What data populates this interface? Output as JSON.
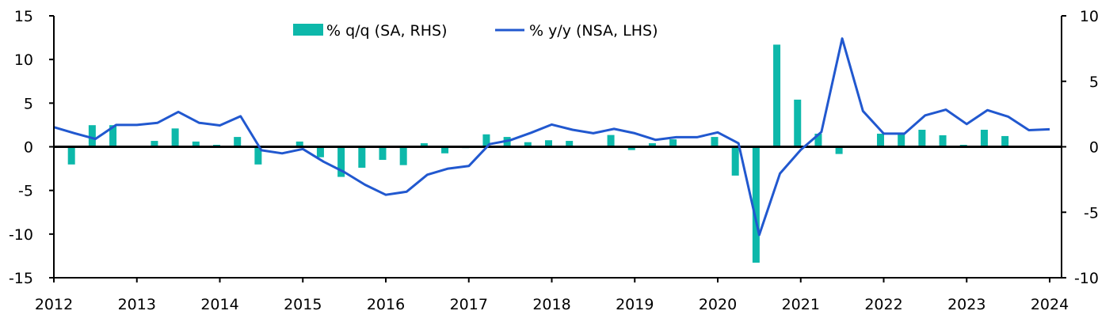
{
  "chart_data": {
    "type": "bar+line",
    "title": "",
    "x_ticks": [
      "2012",
      "2013",
      "2014",
      "2015",
      "2016",
      "2017",
      "2018",
      "2019",
      "2020",
      "2021",
      "2022",
      "2023",
      "2024"
    ],
    "x_range": [
      2012,
      2024
    ],
    "left_axis": {
      "label": "",
      "ylim": [
        -15,
        15
      ],
      "ticks": [
        "15",
        "10",
        "5",
        "0",
        "-5",
        "-10",
        "-15"
      ]
    },
    "right_axis": {
      "label": "",
      "ylim": [
        -10,
        10
      ],
      "ticks": [
        "10",
        "5",
        "0",
        "-5",
        "-10"
      ]
    },
    "legend": {
      "placement": "top-center"
    },
    "series": [
      {
        "name": "% q/q (SA, RHS)",
        "type": "bar",
        "axis": "right",
        "color": "#0DB8AA",
        "x_start": 2012.0,
        "x_step": 0.25,
        "values": [
          null,
          -1.35,
          1.65,
          1.65,
          0,
          0.45,
          1.4,
          0.4,
          0.15,
          0.75,
          -1.35,
          0,
          0.4,
          -0.8,
          -2.3,
          -1.6,
          -1.0,
          -1.4,
          0.27,
          -0.5,
          -0.1,
          0.95,
          0.75,
          0.35,
          0.5,
          0.45,
          0,
          0.9,
          -0.25,
          0.27,
          0.57,
          0,
          0.75,
          -2.2,
          -8.85,
          7.8,
          3.6,
          1.0,
          -0.55,
          0,
          1.0,
          1.0,
          1.3,
          0.88,
          0.15,
          1.3,
          0.82,
          null
        ]
      },
      {
        "name": "% y/y (NSA, LHS)",
        "type": "line",
        "axis": "left",
        "color": "#2158CF",
        "x_start": 2012.0,
        "x_step": 0.25,
        "values": [
          2.25,
          1.55,
          0.9,
          2.5,
          2.5,
          2.75,
          4.0,
          2.75,
          2.45,
          3.5,
          -0.4,
          -0.75,
          -0.25,
          -1.7,
          -2.9,
          -4.35,
          -5.5,
          -5.15,
          -3.2,
          -2.5,
          -2.2,
          0.3,
          0.75,
          1.6,
          2.55,
          1.95,
          1.55,
          2.05,
          1.55,
          0.8,
          1.1,
          1.1,
          1.65,
          0.4,
          -10.1,
          -3.05,
          -0.35,
          1.7,
          12.4,
          4.1,
          1.5,
          1.5,
          3.6,
          4.25,
          2.6,
          4.2,
          3.45,
          1.9,
          2.0
        ]
      }
    ]
  }
}
